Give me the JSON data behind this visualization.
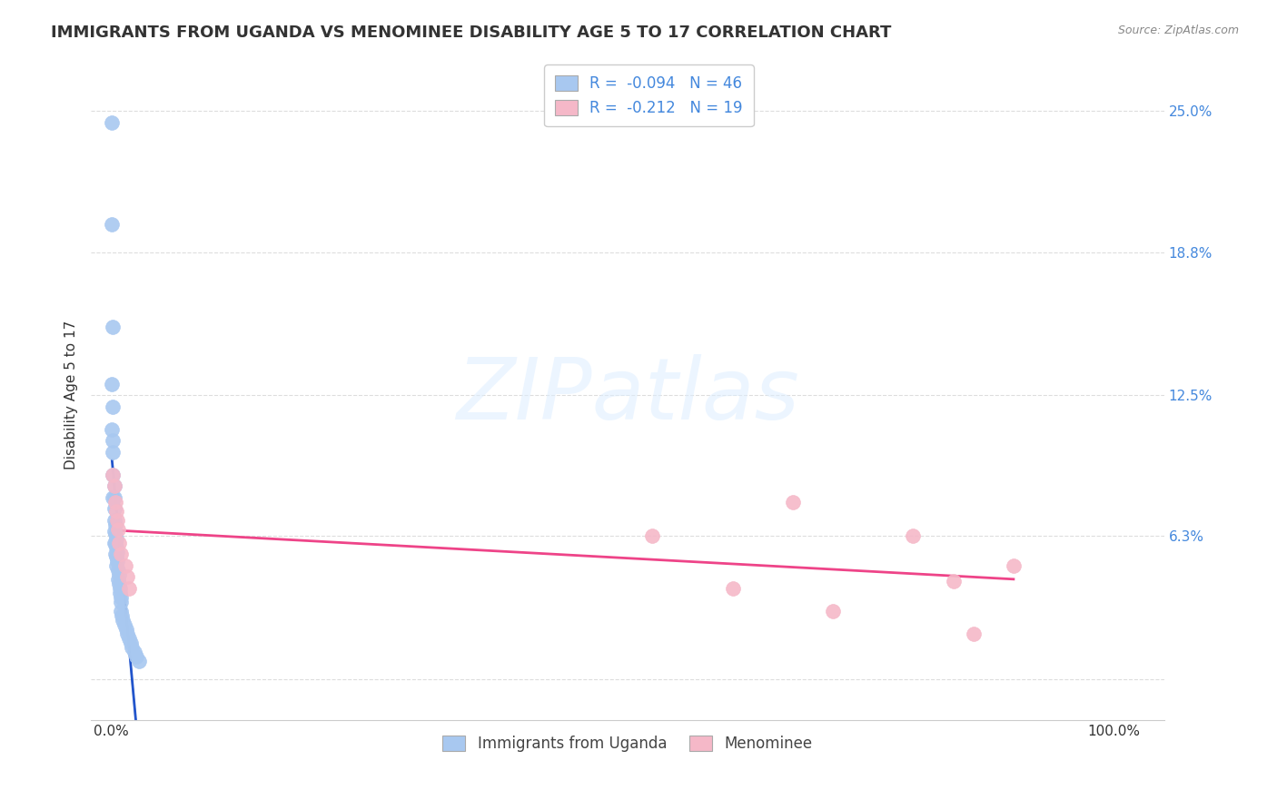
{
  "title": "IMMIGRANTS FROM UGANDA VS MENOMINEE DISABILITY AGE 5 TO 17 CORRELATION CHART",
  "source": "Source: ZipAtlas.com",
  "ylabel": "Disability Age 5 to 17",
  "xlim": [
    -0.02,
    1.05
  ],
  "ylim": [
    -0.018,
    0.268
  ],
  "R_uganda": -0.094,
  "N_uganda": 46,
  "R_menominee": -0.212,
  "N_menominee": 19,
  "legend_labels": [
    "Immigrants from Uganda",
    "Menominee"
  ],
  "blue_color": "#a8c8f0",
  "pink_color": "#f5b8c8",
  "blue_line_color": "#2255cc",
  "pink_line_color": "#ee4488",
  "dashed_line_color": "#bbbbbb",
  "watermark_color": "#ddeeff",
  "background_color": "#ffffff",
  "grid_color": "#dddddd",
  "ytick_vals": [
    0.0,
    0.063,
    0.125,
    0.188,
    0.25
  ],
  "ytick_labels": [
    "",
    "6.3%",
    "12.5%",
    "18.8%",
    "25.0%"
  ],
  "uganda_x": [
    0.001,
    0.001,
    0.001,
    0.002,
    0.002,
    0.002,
    0.002,
    0.002,
    0.003,
    0.003,
    0.003,
    0.003,
    0.003,
    0.003,
    0.004,
    0.004,
    0.004,
    0.004,
    0.005,
    0.005,
    0.005,
    0.005,
    0.006,
    0.006,
    0.007,
    0.007,
    0.008,
    0.008,
    0.009,
    0.009,
    0.01,
    0.01,
    0.01,
    0.011,
    0.012,
    0.013,
    0.015,
    0.016,
    0.018,
    0.02,
    0.021,
    0.023,
    0.025,
    0.028,
    0.001,
    0.002
  ],
  "uganda_y": [
    0.245,
    0.2,
    0.13,
    0.12,
    0.1,
    0.09,
    0.08,
    0.155,
    0.085,
    0.08,
    0.075,
    0.07,
    0.065,
    0.06,
    0.068,
    0.064,
    0.06,
    0.055,
    0.062,
    0.058,
    0.054,
    0.05,
    0.056,
    0.052,
    0.048,
    0.044,
    0.046,
    0.042,
    0.04,
    0.038,
    0.036,
    0.034,
    0.03,
    0.028,
    0.026,
    0.024,
    0.022,
    0.02,
    0.018,
    0.016,
    0.014,
    0.012,
    0.01,
    0.008,
    0.11,
    0.105
  ],
  "menominee_x": [
    0.002,
    0.003,
    0.004,
    0.005,
    0.006,
    0.007,
    0.008,
    0.01,
    0.014,
    0.016,
    0.018,
    0.54,
    0.62,
    0.68,
    0.72,
    0.8,
    0.84,
    0.86,
    0.9
  ],
  "menominee_y": [
    0.09,
    0.085,
    0.078,
    0.074,
    0.07,
    0.066,
    0.06,
    0.055,
    0.05,
    0.045,
    0.04,
    0.063,
    0.04,
    0.078,
    0.03,
    0.063,
    0.043,
    0.02,
    0.05
  ]
}
